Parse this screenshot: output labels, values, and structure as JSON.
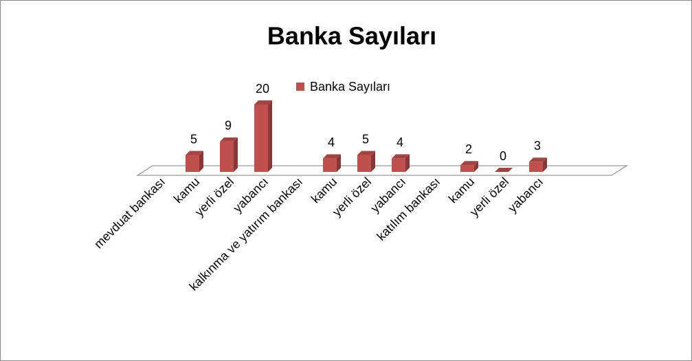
{
  "chart_data": {
    "type": "bar3d",
    "title": "Banka Sayıları",
    "categories": [
      "mevduat bankası",
      "kamu",
      "yerli özel",
      "yabancı",
      "kalkınma ve yatırım bankası",
      "kamu",
      "yerli özel",
      "yabancı",
      "katılım bankası",
      "kamu",
      "yerli özel",
      "yabancı"
    ],
    "series": [
      {
        "name": "Banka Sayıları",
        "color": "#c0504d",
        "values": [
          null,
          5,
          9,
          20,
          null,
          4,
          5,
          4,
          null,
          2,
          0,
          3
        ]
      }
    ],
    "legend": "top"
  }
}
